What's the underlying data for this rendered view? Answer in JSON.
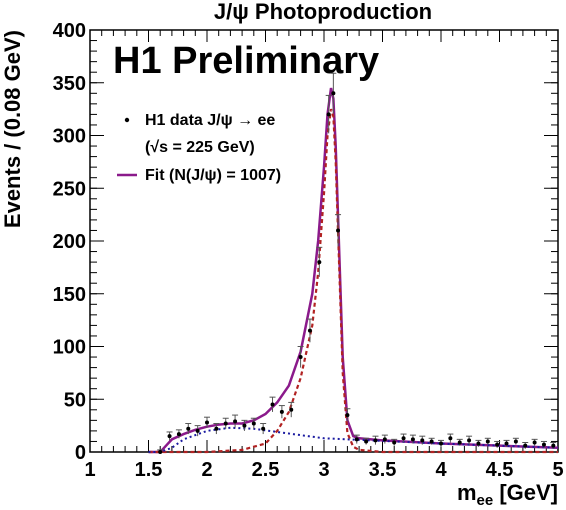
{
  "chart_data": {
    "type": "scatter",
    "title": "J/ψ Photoproduction",
    "banner": "H1 Preliminary",
    "xlabel": "m",
    "xlabel_sub": "ee",
    "xlabel_unit": " [GeV]",
    "ylabel": "Events / (0.08 GeV)",
    "xlim": [
      1,
      5
    ],
    "ylim": [
      0,
      400
    ],
    "x_ticks": [
      1,
      1.5,
      2,
      2.5,
      3,
      3.5,
      4,
      4.5,
      5
    ],
    "x_tick_labels": [
      "1",
      "1.5",
      "2",
      "2.5",
      "3",
      "3.5",
      "4",
      "4.5",
      "5"
    ],
    "y_ticks": [
      0,
      50,
      100,
      150,
      200,
      250,
      300,
      350,
      400
    ],
    "y_tick_labels": [
      "0",
      "50",
      "100",
      "150",
      "200",
      "250",
      "300",
      "350",
      "400"
    ],
    "grid": false,
    "legend": {
      "position": "top-left",
      "entries": [
        {
          "label": "H1 data J/ψ → ee",
          "kind": "marker"
        },
        {
          "label": "(√s = 225 GeV)",
          "kind": "none"
        },
        {
          "label": "Fit (N(J/ψ) = 1007)",
          "kind": "line"
        }
      ]
    },
    "colors": {
      "fit": "#8b1a8b",
      "signal": "#b22222",
      "background": "#1a1aa0",
      "data": "#000000"
    },
    "series": [
      {
        "name": "H1 data J/ψ → ee",
        "kind": "points",
        "x": [
          1.6,
          1.68,
          1.76,
          1.84,
          1.92,
          2.0,
          2.08,
          2.16,
          2.24,
          2.32,
          2.4,
          2.48,
          2.56,
          2.64,
          2.72,
          2.8,
          2.88,
          2.96,
          3.04,
          3.08,
          3.12,
          3.2,
          3.28,
          3.36,
          3.44,
          3.52,
          3.6,
          3.68,
          3.76,
          3.84,
          3.92,
          4.0,
          4.08,
          4.16,
          4.24,
          4.32,
          4.4,
          4.48,
          4.56,
          4.64,
          4.72,
          4.8,
          4.88,
          4.96
        ],
        "y": [
          0,
          15,
          17,
          22,
          20,
          28,
          22,
          27,
          29,
          25,
          27,
          22,
          45,
          38,
          40,
          90,
          115,
          180,
          320,
          340,
          210,
          35,
          12,
          10,
          11,
          12,
          9,
          13,
          12,
          11,
          10,
          8,
          13,
          9,
          11,
          8,
          10,
          7,
          8,
          10,
          6,
          9,
          7,
          6
        ],
        "yerr": [
          2,
          4,
          4,
          5,
          5,
          5,
          5,
          5,
          6,
          5,
          5,
          5,
          7,
          6,
          7,
          10,
          11,
          14,
          18,
          19,
          15,
          6,
          4,
          3,
          4,
          4,
          3,
          4,
          4,
          4,
          3,
          3,
          4,
          3,
          4,
          3,
          3,
          3,
          3,
          3,
          3,
          3,
          3,
          3
        ]
      },
      {
        "name": "Fit (N(J/ψ) = 1007)",
        "kind": "line",
        "x": [
          1.5,
          1.6,
          1.65,
          1.7,
          1.8,
          1.9,
          2.0,
          2.1,
          2.2,
          2.3,
          2.4,
          2.5,
          2.6,
          2.7,
          2.8,
          2.9,
          2.95,
          3.0,
          3.03,
          3.06,
          3.08,
          3.1,
          3.13,
          3.16,
          3.2,
          3.25,
          3.3,
          3.5,
          4.0,
          4.5,
          5.0
        ],
        "y": [
          0,
          0,
          6,
          12,
          17,
          21,
          24,
          26,
          27,
          27,
          30,
          36,
          47,
          63,
          95,
          150,
          200,
          270,
          320,
          345,
          335,
          290,
          190,
          90,
          30,
          15,
          13,
          11,
          8,
          6,
          4
        ]
      },
      {
        "name": "",
        "kind": "signal",
        "x": [
          1.5,
          2.0,
          2.3,
          2.5,
          2.6,
          2.7,
          2.8,
          2.9,
          2.95,
          3.0,
          3.03,
          3.06,
          3.08,
          3.1,
          3.13,
          3.16,
          3.2,
          3.25,
          3.3,
          3.5,
          4.0,
          5.0
        ],
        "y": [
          0,
          0,
          2,
          8,
          20,
          38,
          70,
          120,
          170,
          245,
          300,
          325,
          318,
          275,
          175,
          75,
          18,
          5,
          2,
          0,
          0,
          0
        ]
      },
      {
        "name": "",
        "kind": "background",
        "x": [
          1.5,
          1.6,
          1.7,
          1.8,
          2.0,
          2.2,
          2.4,
          2.6,
          2.8,
          3.0,
          3.2,
          3.4,
          3.6,
          3.8,
          4.0,
          4.5,
          5.0
        ],
        "y": [
          0,
          0,
          4,
          12,
          20,
          23,
          22,
          19,
          16,
          13,
          12,
          11,
          10,
          9,
          8,
          6,
          4
        ]
      }
    ]
  }
}
